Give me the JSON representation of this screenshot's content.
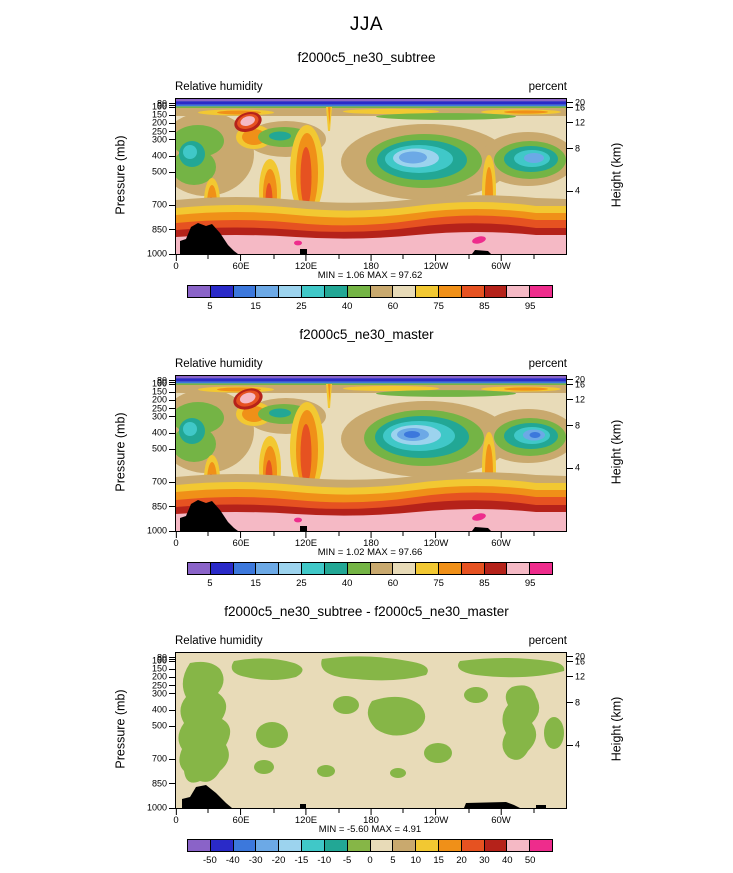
{
  "page": {
    "title": "JJA"
  },
  "axes": {
    "left_axis_title": "Pressure (mb)",
    "right_axis_title": "Height (km)",
    "pressure_labels": [
      "80",
      "90",
      "100",
      "150",
      "200",
      "250",
      "300",
      "400",
      "500",
      "700",
      "850",
      "1000"
    ],
    "height_labels": [
      "20",
      "16",
      "12",
      "8",
      "4"
    ],
    "lon_labels": [
      "0",
      "60E",
      "120E",
      "180",
      "120W",
      "60W"
    ]
  },
  "panels": [
    {
      "title": "f2000c5_ne30_subtree",
      "field_label": "Relative humidity",
      "units_label": "percent",
      "stats": "MIN =  1.06  MAX =  97.62"
    },
    {
      "title": "f2000c5_ne30_master",
      "field_label": "Relative humidity",
      "units_label": "percent",
      "stats": "MIN =  1.02  MAX =  97.66"
    },
    {
      "title": "f2000c5_ne30_subtree - f2000c5_ne30_master",
      "field_label": "Relative humidity",
      "units_label": "percent",
      "stats": "MIN = -5.60  MAX =  4.91"
    }
  ],
  "colorbars": {
    "main": {
      "colors": [
        "#8A63C8",
        "#2A2AC8",
        "#3C78DC",
        "#6CA9E6",
        "#9CD3EE",
        "#40C8C8",
        "#22A795",
        "#74B445",
        "#C9A96E",
        "#E8DBB8",
        "#F2C832",
        "#F09018",
        "#E65221",
        "#B5221A",
        "#F5B9C5",
        "#EE2C8C"
      ],
      "labels": [
        "5",
        "15",
        "25",
        "40",
        "60",
        "75",
        "85",
        "95"
      ]
    },
    "diff": {
      "colors": [
        "#8A63C8",
        "#2A2AC8",
        "#3C78DC",
        "#6CA9E6",
        "#9CD3EE",
        "#40C8C8",
        "#22A795",
        "#86B647",
        "#E8DBB8",
        "#C9A96E",
        "#F2C832",
        "#F09018",
        "#E65221",
        "#B5221A",
        "#F5B9C5",
        "#EE2C8C"
      ],
      "labels": [
        "-50",
        "-40",
        "-30",
        "-20",
        "-15",
        "-10",
        "-5",
        "0",
        "5",
        "10",
        "15",
        "20",
        "30",
        "40",
        "50"
      ]
    }
  },
  "chart_data": [
    {
      "type": "heatmap",
      "title": "f2000c5_ne30_subtree",
      "field": "Relative humidity",
      "units": "percent",
      "season": "JJA",
      "x_tick_labels": [
        "0",
        "60E",
        "120E",
        "180",
        "120W",
        "60W"
      ],
      "x_range_degrees": [
        0,
        360
      ],
      "y_left_label": "Pressure (mb)",
      "y_left_ticks": [
        80,
        90,
        100,
        150,
        200,
        250,
        300,
        400,
        500,
        700,
        850,
        1000
      ],
      "y_right_label": "Height (km)",
      "y_right_ticks": [
        20,
        16,
        12,
        8,
        4
      ],
      "colorbar_labels": [
        5,
        15,
        25,
        40,
        60,
        75,
        85,
        95
      ],
      "colors": [
        "#8A63C8",
        "#2A2AC8",
        "#3C78DC",
        "#6CA9E6",
        "#9CD3EE",
        "#40C8C8",
        "#22A795",
        "#74B445",
        "#C9A96E",
        "#E8DBB8",
        "#F2C832",
        "#F09018",
        "#E65221",
        "#B5221A",
        "#F5B9C5",
        "#EE2C8C"
      ],
      "min": 1.06,
      "max": 97.62
    },
    {
      "type": "heatmap",
      "title": "f2000c5_ne30_master",
      "field": "Relative humidity",
      "units": "percent",
      "season": "JJA",
      "x_tick_labels": [
        "0",
        "60E",
        "120E",
        "180",
        "120W",
        "60W"
      ],
      "x_range_degrees": [
        0,
        360
      ],
      "y_left_label": "Pressure (mb)",
      "y_left_ticks": [
        80,
        90,
        100,
        150,
        200,
        250,
        300,
        400,
        500,
        700,
        850,
        1000
      ],
      "y_right_label": "Height (km)",
      "y_right_ticks": [
        20,
        16,
        12,
        8,
        4
      ],
      "colorbar_labels": [
        5,
        15,
        25,
        40,
        60,
        75,
        85,
        95
      ],
      "colors": [
        "#8A63C8",
        "#2A2AC8",
        "#3C78DC",
        "#6CA9E6",
        "#9CD3EE",
        "#40C8C8",
        "#22A795",
        "#74B445",
        "#C9A96E",
        "#E8DBB8",
        "#F2C832",
        "#F09018",
        "#E65221",
        "#B5221A",
        "#F5B9C5",
        "#EE2C8C"
      ],
      "min": 1.02,
      "max": 97.66
    },
    {
      "type": "heatmap",
      "title": "f2000c5_ne30_subtree - f2000c5_ne30_master",
      "field": "Relative humidity",
      "units": "percent",
      "season": "JJA",
      "x_tick_labels": [
        "0",
        "60E",
        "120E",
        "180",
        "120W",
        "60W"
      ],
      "x_range_degrees": [
        0,
        360
      ],
      "y_left_label": "Pressure (mb)",
      "y_left_ticks": [
        80,
        90,
        100,
        150,
        200,
        250,
        300,
        400,
        500,
        700,
        850,
        1000
      ],
      "y_right_label": "Height (km)",
      "y_right_ticks": [
        20,
        16,
        12,
        8,
        4
      ],
      "colorbar_labels": [
        -50,
        -40,
        -30,
        -20,
        -15,
        -10,
        -5,
        0,
        5,
        10,
        15,
        20,
        30,
        40,
        50
      ],
      "colors": [
        "#8A63C8",
        "#2A2AC8",
        "#3C78DC",
        "#6CA9E6",
        "#9CD3EE",
        "#40C8C8",
        "#22A795",
        "#86B647",
        "#E8DBB8",
        "#C9A96E",
        "#F2C832",
        "#F09018",
        "#E65221",
        "#B5221A",
        "#F5B9C5",
        "#EE2C8C"
      ],
      "min": -5.6,
      "max": 4.91
    }
  ]
}
